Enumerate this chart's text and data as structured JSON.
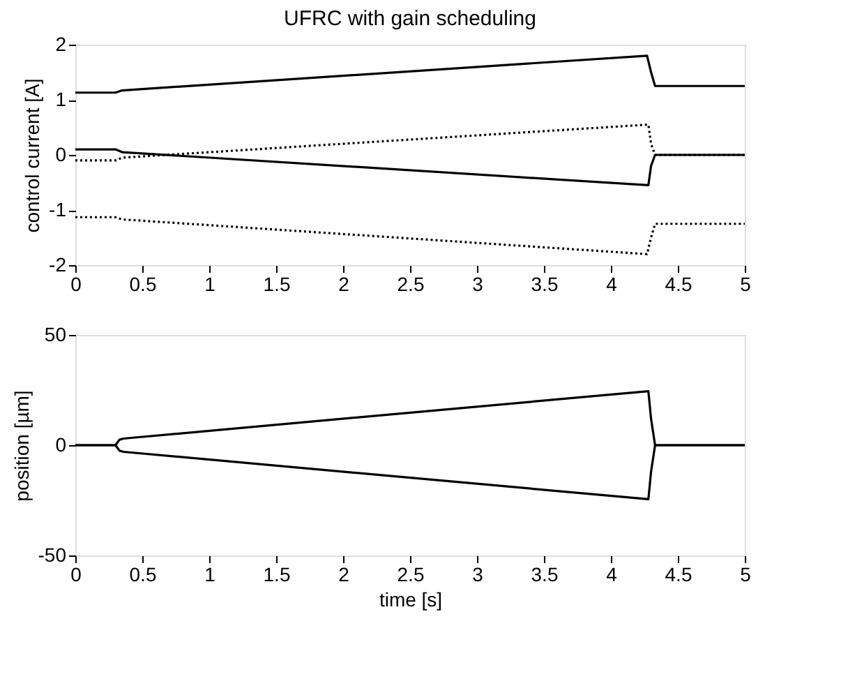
{
  "chart_data": [
    {
      "type": "line",
      "title": "UFRC with gain scheduling",
      "ylabel": "control current [A]",
      "xlim": [
        0,
        5
      ],
      "xticks": [
        0,
        0.5,
        1,
        1.5,
        2,
        2.5,
        3,
        3.5,
        4,
        4.5,
        5
      ],
      "ylim": [
        -2,
        2
      ],
      "yticks": [
        -2,
        -1,
        0,
        1,
        2
      ],
      "grid": false,
      "series": [
        {
          "color": "#000000",
          "line_style": "solid",
          "x": [
            0,
            0.3,
            0.35,
            4.27,
            4.3,
            4.33,
            5
          ],
          "values": [
            1.13,
            1.13,
            1.17,
            1.8,
            1.5,
            1.25,
            1.25
          ]
        },
        {
          "color": "#000000",
          "line_style": "solid",
          "x": [
            0,
            0.3,
            0.35,
            4.28,
            4.3,
            4.33,
            5
          ],
          "values": [
            0.1,
            0.1,
            0.05,
            -0.55,
            -0.2,
            0,
            0
          ]
        },
        {
          "color": "#000000",
          "line_style": "dotted",
          "x": [
            0,
            0.3,
            0.35,
            4.28,
            4.3,
            4.33,
            5
          ],
          "values": [
            -0.1,
            -0.1,
            -0.05,
            0.55,
            0.2,
            0,
            0
          ]
        },
        {
          "color": "#000000",
          "line_style": "dotted",
          "x": [
            0,
            0.3,
            0.35,
            4.27,
            4.3,
            4.33,
            5
          ],
          "values": [
            -1.13,
            -1.13,
            -1.17,
            -1.8,
            -1.5,
            -1.25,
            -1.25
          ]
        }
      ]
    },
    {
      "type": "line",
      "xlabel": "time [s]",
      "ylabel": "position [µm]",
      "xlim": [
        0,
        5
      ],
      "xticks": [
        0,
        0.5,
        1,
        1.5,
        2,
        2.5,
        3,
        3.5,
        4,
        4.5,
        5
      ],
      "ylim": [
        -50,
        50
      ],
      "yticks": [
        -50,
        0,
        50
      ],
      "grid": false,
      "series": [
        {
          "color": "#000000",
          "line_style": "solid",
          "x": [
            0,
            0.3,
            0.33,
            0.36,
            4.28,
            4.3,
            4.33,
            5
          ],
          "values": [
            0,
            0,
            2.5,
            3,
            24.5,
            12,
            0,
            0
          ]
        },
        {
          "color": "#000000",
          "line_style": "solid",
          "x": [
            0,
            0.3,
            0.33,
            0.36,
            4.28,
            4.3,
            4.33,
            5
          ],
          "values": [
            0,
            0,
            -2.5,
            -3,
            -24.5,
            -12,
            0,
            0
          ]
        }
      ]
    }
  ]
}
